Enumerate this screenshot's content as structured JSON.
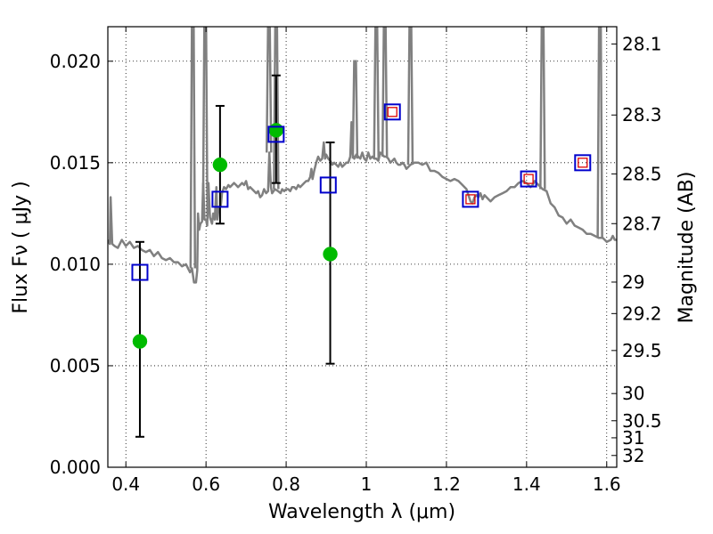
{
  "chart_data": {
    "type": "scatter",
    "xlabel": "Wavelength  λ (μm)",
    "ylabel": "Flux  Fν  ( μJy )",
    "ylabel_right": "Magnitude (AB)",
    "xlim": [
      0.355,
      1.625
    ],
    "ylim": [
      0.0,
      0.0217
    ],
    "grid": true,
    "x_ticks": [
      0.4,
      0.6,
      0.8,
      1.0,
      1.2,
      1.4,
      1.6
    ],
    "x_tick_labels": [
      "0.4",
      "0.6",
      "0.8",
      "1",
      "1.2",
      "1.4",
      "1.6"
    ],
    "y_ticks": [
      0.0,
      0.005,
      0.01,
      0.015,
      0.02
    ],
    "y_tick_labels": [
      "0.000",
      "0.005",
      "0.010",
      "0.015",
      "0.020"
    ],
    "mag_ticks": [
      {
        "flux": 0.02085,
        "label": "28.1"
      },
      {
        "flux": 0.01735,
        "label": "28.3"
      },
      {
        "flux": 0.01445,
        "label": "28.5"
      },
      {
        "flux": 0.012,
        "label": "28.7"
      },
      {
        "flux": 0.00912,
        "label": "29"
      },
      {
        "flux": 0.00757,
        "label": "29.2"
      },
      {
        "flux": 0.00575,
        "label": "29.5"
      },
      {
        "flux": 0.00363,
        "label": "30"
      },
      {
        "flux": 0.00229,
        "label": "30.5"
      },
      {
        "flux": 0.00145,
        "label": "31"
      },
      {
        "flux": 0.00058,
        "label": "32"
      }
    ],
    "series": [
      {
        "kind": "errorbars",
        "color": "#000000",
        "points": [
          {
            "x": 0.435,
            "lo": 0.0015,
            "hi": 0.0111
          },
          {
            "x": 0.635,
            "lo": 0.012,
            "hi": 0.0178
          },
          {
            "x": 0.775,
            "lo": 0.014,
            "hi": 0.0193
          },
          {
            "x": 0.91,
            "lo": 0.0051,
            "hi": 0.016
          }
        ]
      },
      {
        "kind": "circles",
        "color": "#00bb00",
        "points": [
          {
            "x": 0.435,
            "y": 0.0062
          },
          {
            "x": 0.635,
            "y": 0.0149
          },
          {
            "x": 0.775,
            "y": 0.0166
          },
          {
            "x": 0.91,
            "y": 0.0105
          }
        ]
      },
      {
        "kind": "blue-squares",
        "color": "#0000cc",
        "points": [
          {
            "x": 0.435,
            "y": 0.0096
          },
          {
            "x": 0.635,
            "y": 0.0132
          },
          {
            "x": 0.775,
            "y": 0.0164
          },
          {
            "x": 0.905,
            "y": 0.0139
          },
          {
            "x": 1.065,
            "y": 0.0175
          },
          {
            "x": 1.26,
            "y": 0.0132
          },
          {
            "x": 1.405,
            "y": 0.0142
          },
          {
            "x": 1.54,
            "y": 0.015
          }
        ]
      },
      {
        "kind": "red-squares",
        "color": "#dd0000",
        "points": [
          {
            "x": 1.065,
            "y": 0.0175
          },
          {
            "x": 1.26,
            "y": 0.0132
          },
          {
            "x": 1.405,
            "y": 0.0142
          },
          {
            "x": 1.54,
            "y": 0.015
          }
        ]
      },
      {
        "kind": "spectrum",
        "color": "#808080",
        "points": [
          [
            0.355,
            0.0112
          ],
          [
            0.36,
            0.011
          ],
          [
            0.362,
            0.0133
          ],
          [
            0.366,
            0.011
          ],
          [
            0.372,
            0.0109
          ],
          [
            0.38,
            0.0108
          ],
          [
            0.39,
            0.0112
          ],
          [
            0.4,
            0.0109
          ],
          [
            0.41,
            0.0111
          ],
          [
            0.42,
            0.0108
          ],
          [
            0.43,
            0.0109
          ],
          [
            0.44,
            0.0107
          ],
          [
            0.45,
            0.0106
          ],
          [
            0.46,
            0.0107
          ],
          [
            0.47,
            0.0104
          ],
          [
            0.48,
            0.0106
          ],
          [
            0.49,
            0.0103
          ],
          [
            0.5,
            0.0102
          ],
          [
            0.51,
            0.0103
          ],
          [
            0.52,
            0.0101
          ],
          [
            0.53,
            0.0101
          ],
          [
            0.54,
            0.0099
          ],
          [
            0.55,
            0.01
          ],
          [
            0.56,
            0.0096
          ],
          [
            0.565,
            0.0098
          ],
          [
            0.57,
            0.0091
          ],
          [
            0.575,
            0.0091
          ],
          [
            0.578,
            0.0097
          ],
          [
            0.58,
            0.0125
          ],
          [
            0.583,
            0.0117
          ],
          [
            0.586,
            0.012
          ],
          [
            0.59,
            0.0121
          ],
          [
            0.593,
            0.014
          ],
          [
            0.596,
            0.0122
          ],
          [
            0.6,
            0.0122
          ],
          [
            0.603,
            0.0119
          ],
          [
            0.606,
            0.014
          ],
          [
            0.61,
            0.0123
          ],
          [
            0.615,
            0.012
          ],
          [
            0.618,
            0.0125
          ],
          [
            0.622,
            0.0122
          ],
          [
            0.626,
            0.0138
          ],
          [
            0.628,
            0.0122
          ],
          [
            0.632,
            0.0128
          ],
          [
            0.637,
            0.0129
          ],
          [
            0.64,
            0.0135
          ],
          [
            0.645,
            0.0138
          ],
          [
            0.65,
            0.0137
          ],
          [
            0.656,
            0.0139
          ],
          [
            0.66,
            0.0138
          ],
          [
            0.665,
            0.0139
          ],
          [
            0.67,
            0.014
          ],
          [
            0.675,
            0.0139
          ],
          [
            0.68,
            0.0138
          ],
          [
            0.685,
            0.0139
          ],
          [
            0.69,
            0.014
          ],
          [
            0.695,
            0.0139
          ],
          [
            0.7,
            0.0141
          ],
          [
            0.705,
            0.0137
          ],
          [
            0.71,
            0.0138
          ],
          [
            0.715,
            0.0137
          ],
          [
            0.72,
            0.0136
          ],
          [
            0.725,
            0.0135
          ],
          [
            0.73,
            0.0136
          ],
          [
            0.735,
            0.0133
          ],
          [
            0.74,
            0.0134
          ],
          [
            0.745,
            0.0137
          ],
          [
            0.75,
            0.0135
          ],
          [
            0.755,
            0.0136
          ],
          [
            0.758,
            0.0155
          ],
          [
            0.762,
            0.0138
          ],
          [
            0.765,
            0.0135
          ],
          [
            0.772,
            0.0137
          ],
          [
            0.78,
            0.0136
          ],
          [
            0.786,
            0.0135
          ],
          [
            0.79,
            0.0137
          ],
          [
            0.795,
            0.0136
          ],
          [
            0.8,
            0.0137
          ],
          [
            0.805,
            0.0137
          ],
          [
            0.81,
            0.0136
          ],
          [
            0.815,
            0.0138
          ],
          [
            0.82,
            0.0138
          ],
          [
            0.825,
            0.0137
          ],
          [
            0.83,
            0.0139
          ],
          [
            0.835,
            0.0138
          ],
          [
            0.84,
            0.0139
          ],
          [
            0.845,
            0.014
          ],
          [
            0.85,
            0.0141
          ],
          [
            0.855,
            0.0141
          ],
          [
            0.86,
            0.0143
          ],
          [
            0.863,
            0.0147
          ],
          [
            0.866,
            0.0142
          ],
          [
            0.87,
            0.0146
          ],
          [
            0.875,
            0.015
          ],
          [
            0.88,
            0.0153
          ],
          [
            0.885,
            0.0151
          ],
          [
            0.89,
            0.0152
          ],
          [
            0.894,
            0.016
          ],
          [
            0.897,
            0.0152
          ],
          [
            0.9,
            0.0154
          ],
          [
            0.905,
            0.0152
          ],
          [
            0.91,
            0.0151
          ],
          [
            0.915,
            0.0149
          ],
          [
            0.92,
            0.015
          ],
          [
            0.925,
            0.0149
          ],
          [
            0.93,
            0.0148
          ],
          [
            0.935,
            0.015
          ],
          [
            0.94,
            0.0148
          ],
          [
            0.945,
            0.0149
          ],
          [
            0.95,
            0.015
          ],
          [
            0.955,
            0.015
          ],
          [
            0.96,
            0.0153
          ],
          [
            0.963,
            0.017
          ],
          [
            0.966,
            0.0154
          ],
          [
            0.97,
            0.0152
          ],
          [
            0.975,
            0.0154
          ],
          [
            0.98,
            0.0153
          ],
          [
            0.985,
            0.0152
          ],
          [
            0.99,
            0.0155
          ],
          [
            0.995,
            0.0152
          ],
          [
            1.0,
            0.0151
          ],
          [
            1.005,
            0.0155
          ],
          [
            1.01,
            0.0152
          ],
          [
            1.015,
            0.0153
          ],
          [
            1.02,
            0.0152
          ],
          [
            1.025,
            0.0152
          ],
          [
            1.03,
            0.0151
          ],
          [
            1.035,
            0.0155
          ],
          [
            1.04,
            0.0154
          ],
          [
            1.045,
            0.0153
          ],
          [
            1.05,
            0.0153
          ],
          [
            1.055,
            0.0152
          ],
          [
            1.06,
            0.015
          ],
          [
            1.065,
            0.0151
          ],
          [
            1.07,
            0.0152
          ],
          [
            1.075,
            0.015
          ],
          [
            1.08,
            0.0149
          ],
          [
            1.085,
            0.0149
          ],
          [
            1.09,
            0.015
          ],
          [
            1.095,
            0.0149
          ],
          [
            1.1,
            0.0147
          ],
          [
            1.11,
            0.0149
          ],
          [
            1.12,
            0.015
          ],
          [
            1.13,
            0.015
          ],
          [
            1.14,
            0.0149
          ],
          [
            1.15,
            0.015
          ],
          [
            1.16,
            0.0146
          ],
          [
            1.17,
            0.0146
          ],
          [
            1.18,
            0.0145
          ],
          [
            1.19,
            0.0143
          ],
          [
            1.2,
            0.0142
          ],
          [
            1.21,
            0.0141
          ],
          [
            1.22,
            0.0142
          ],
          [
            1.23,
            0.0141
          ],
          [
            1.24,
            0.0139
          ],
          [
            1.25,
            0.0137
          ],
          [
            1.255,
            0.0134
          ],
          [
            1.26,
            0.0131
          ],
          [
            1.265,
            0.013
          ],
          [
            1.27,
            0.0133
          ],
          [
            1.275,
            0.0134
          ],
          [
            1.28,
            0.0133
          ],
          [
            1.285,
            0.0135
          ],
          [
            1.29,
            0.0132
          ],
          [
            1.295,
            0.0134
          ],
          [
            1.3,
            0.0133
          ],
          [
            1.31,
            0.0131
          ],
          [
            1.32,
            0.0133
          ],
          [
            1.33,
            0.0134
          ],
          [
            1.34,
            0.0135
          ],
          [
            1.35,
            0.0136
          ],
          [
            1.36,
            0.0138
          ],
          [
            1.37,
            0.0138
          ],
          [
            1.38,
            0.014
          ],
          [
            1.39,
            0.0141
          ],
          [
            1.4,
            0.014
          ],
          [
            1.41,
            0.0138
          ],
          [
            1.415,
            0.0139
          ],
          [
            1.42,
            0.0141
          ],
          [
            1.43,
            0.0139
          ],
          [
            1.44,
            0.0137
          ],
          [
            1.45,
            0.0136
          ],
          [
            1.46,
            0.013
          ],
          [
            1.47,
            0.0128
          ],
          [
            1.48,
            0.0124
          ],
          [
            1.49,
            0.0123
          ],
          [
            1.5,
            0.012
          ],
          [
            1.51,
            0.0122
          ],
          [
            1.52,
            0.0119
          ],
          [
            1.53,
            0.0118
          ],
          [
            1.54,
            0.0117
          ],
          [
            1.55,
            0.0115
          ],
          [
            1.56,
            0.0115
          ],
          [
            1.57,
            0.0114
          ],
          [
            1.58,
            0.0113
          ],
          [
            1.59,
            0.0113
          ],
          [
            1.6,
            0.0111
          ],
          [
            1.61,
            0.0112
          ],
          [
            1.615,
            0.0114
          ],
          [
            1.62,
            0.0112
          ],
          [
            1.625,
            0.0112
          ]
        ],
        "spikes": [
          {
            "x": 0.567,
            "top": 0.0217
          },
          {
            "x": 0.598,
            "top": 0.0217
          },
          {
            "x": 0.757,
            "top": 0.0217
          },
          {
            "x": 0.775,
            "top": 0.0217
          },
          {
            "x": 0.972,
            "top": 0.02
          },
          {
            "x": 1.025,
            "top": 0.0217
          },
          {
            "x": 1.046,
            "top": 0.0217
          },
          {
            "x": 1.11,
            "top": 0.0217
          },
          {
            "x": 1.44,
            "top": 0.0217
          },
          {
            "x": 1.583,
            "top": 0.0217
          }
        ]
      }
    ]
  }
}
